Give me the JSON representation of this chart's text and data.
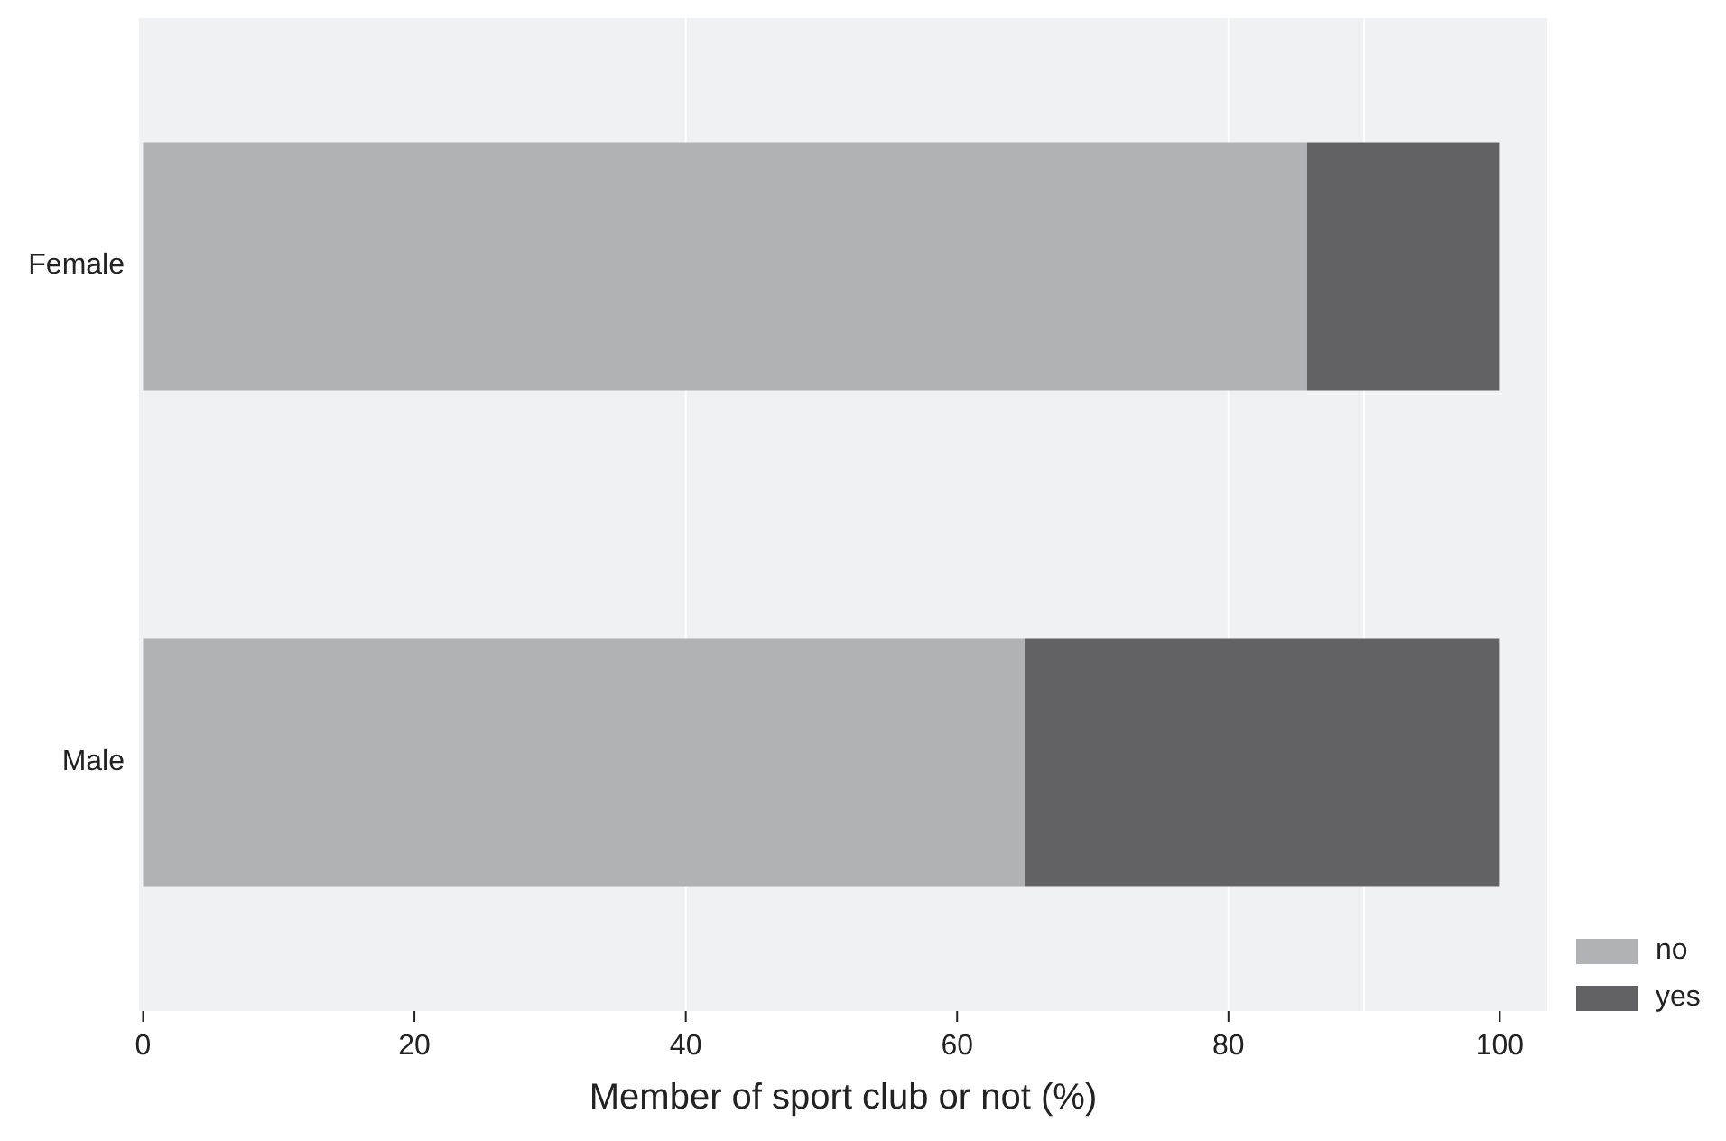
{
  "chart_data": {
    "type": "bar",
    "orientation": "horizontal",
    "stacked": true,
    "categories": [
      "Female",
      "Male"
    ],
    "series": [
      {
        "name": "no",
        "color": "#b1b2b6",
        "values": [
          85.8,
          65.0
        ]
      },
      {
        "name": "yes",
        "color": "#626264",
        "values": [
          14.2,
          35.0
        ]
      }
    ],
    "xlabel": "Member of sport club or not (%)",
    "xlim": [
      -0.3,
      103.5
    ],
    "xticks": [
      0,
      20,
      40,
      60,
      80,
      100
    ],
    "ref_lines": [
      {
        "axis": "x",
        "value": 40,
        "color": "#ffffff"
      },
      {
        "axis": "x",
        "value": 80,
        "color": "#ffffff"
      },
      {
        "axis": "x",
        "value": 90,
        "color": "#ffffff"
      }
    ],
    "legend": "bottom right"
  }
}
